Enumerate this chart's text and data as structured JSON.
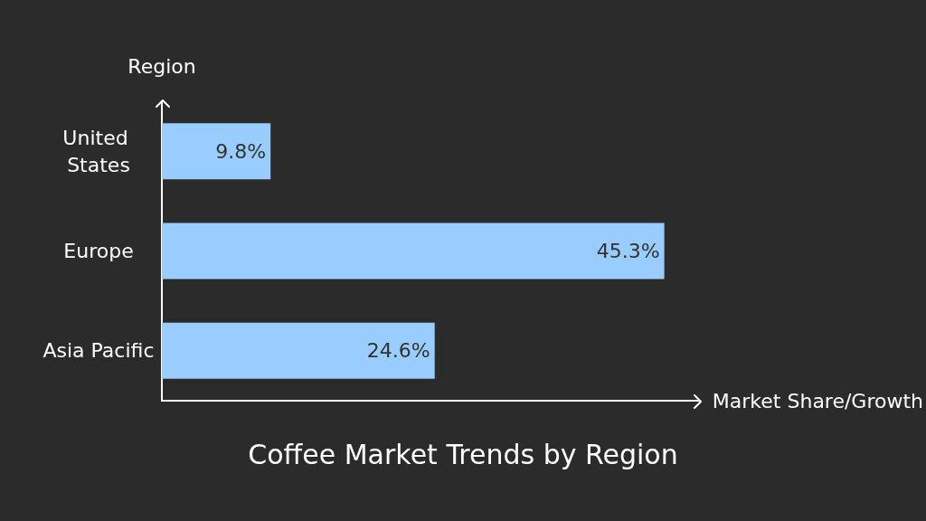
{
  "chart_data": {
    "type": "bar",
    "orientation": "horizontal",
    "title": "Coffee Market Trends by Region",
    "xlabel": "Market Share/Growth",
    "ylabel": "Region",
    "categories": [
      "United States",
      "Europe",
      "Asia Pacific"
    ],
    "values": [
      9.8,
      45.3,
      24.6
    ],
    "value_labels": [
      "9.8%",
      "45.3%",
      "24.6%"
    ],
    "color": "#99ccff",
    "xlim": [
      0,
      48.5
    ],
    "grid": false
  }
}
